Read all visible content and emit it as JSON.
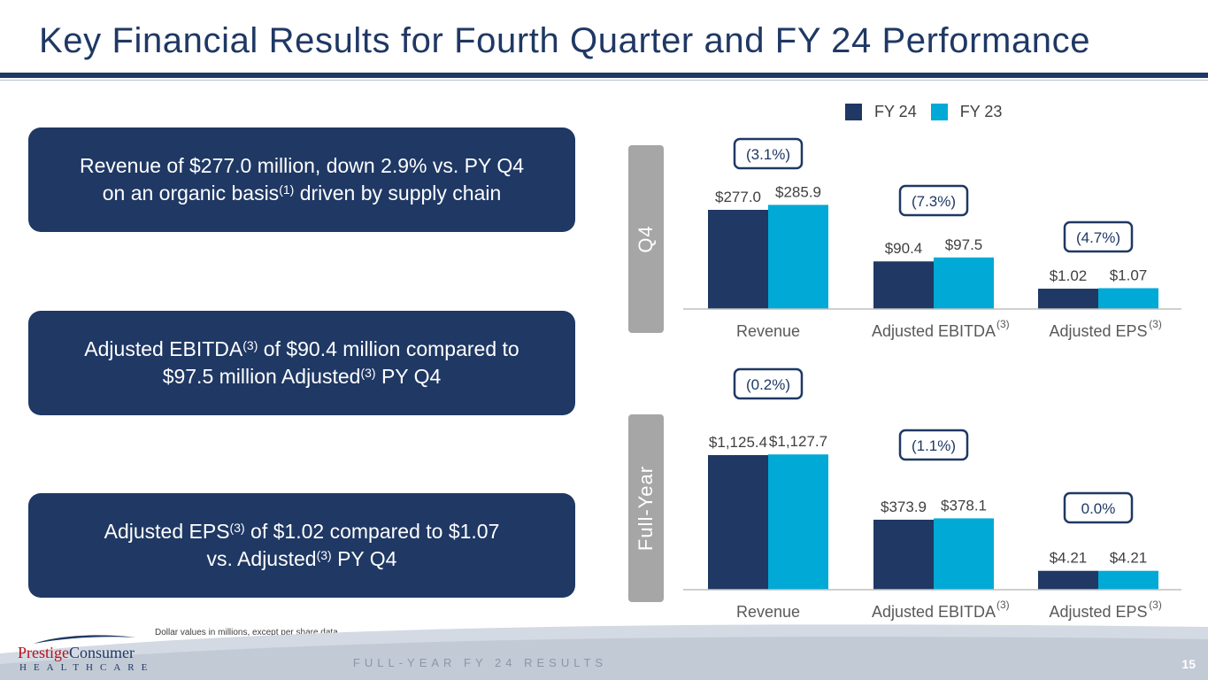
{
  "title": "Key Financial Results for Fourth Quarter and FY 24 Performance",
  "highlights": [
    {
      "line1": "Revenue of $277.0 million, down 2.9% vs. PY Q4",
      "line2a": "on an organic basis",
      "line2sup": "(1)",
      "line2b": " driven by supply chain"
    },
    {
      "line1a": "Adjusted EBITDA",
      "line1sup": "(3)",
      "line1b": " of $90.4 million compared to",
      "line2a": "$97.5 million Adjusted",
      "line2sup": "(3)",
      "line2b": " PY Q4"
    },
    {
      "line1a": "Adjusted EPS",
      "line1sup": "(3)",
      "line1b": " of $1.02 compared to $1.07",
      "line2a": "vs. Adjusted",
      "line2sup": "(3)",
      "line2b": " PY Q4"
    }
  ],
  "legend": {
    "fy24": "FY 24",
    "fy23": "FY 23"
  },
  "colors": {
    "fy24": "#1f3864",
    "fy23": "#00a9d6",
    "title": "#1f3864",
    "tab": "#a6a6a6"
  },
  "tabs": {
    "q4": "Q4",
    "full_year": "Full-Year"
  },
  "chart_data": [
    {
      "type": "bar",
      "panel": "Q4",
      "categories": [
        "Revenue",
        "Adjusted EBITDA",
        "Adjusted EPS"
      ],
      "category_sups": [
        "",
        "(3)",
        "(3)"
      ],
      "series": [
        {
          "name": "FY 24",
          "values": [
            277.0,
            90.4,
            1.02
          ],
          "labels": [
            "$277.0",
            "$90.4",
            "$1.02"
          ]
        },
        {
          "name": "FY 23",
          "values": [
            285.9,
            97.5,
            1.07
          ],
          "labels": [
            "$285.9",
            "$97.5",
            "$1.07"
          ]
        }
      ],
      "changes": [
        "(3.1%)",
        "(7.3%)",
        "(4.7%)"
      ],
      "relative_heights_fy24": [
        1.0,
        0.48,
        0.205
      ],
      "relative_heights_fy23": [
        1.05,
        0.52,
        0.21
      ]
    },
    {
      "type": "bar",
      "panel": "Full-Year",
      "categories": [
        "Revenue",
        "Adjusted EBITDA",
        "Adjusted EPS"
      ],
      "category_sups": [
        "",
        "(3)",
        "(3)"
      ],
      "series": [
        {
          "name": "FY 24",
          "values": [
            1125.4,
            373.9,
            4.21
          ],
          "labels": [
            "$1,125.4",
            "$373.9",
            "$4.21"
          ]
        },
        {
          "name": "FY 23",
          "values": [
            1127.7,
            378.1,
            4.21
          ],
          "labels": [
            "$1,127.7",
            "$378.1",
            "$4.21"
          ]
        }
      ],
      "changes": [
        "(0.2%)",
        "(1.1%)",
        "0.0%"
      ],
      "relative_heights_fy24": [
        1.0,
        0.52,
        0.14
      ],
      "relative_heights_fy23": [
        1.005,
        0.53,
        0.14
      ]
    }
  ],
  "footnote": "Dollar values in millions, except per share data.",
  "footer": "FULL-YEAR FY 24 RESULTS",
  "page_number": "15",
  "logo": {
    "prestige": "Prestige",
    "consumer": "Consumer",
    "healthcare": "HEALTHCARE"
  }
}
